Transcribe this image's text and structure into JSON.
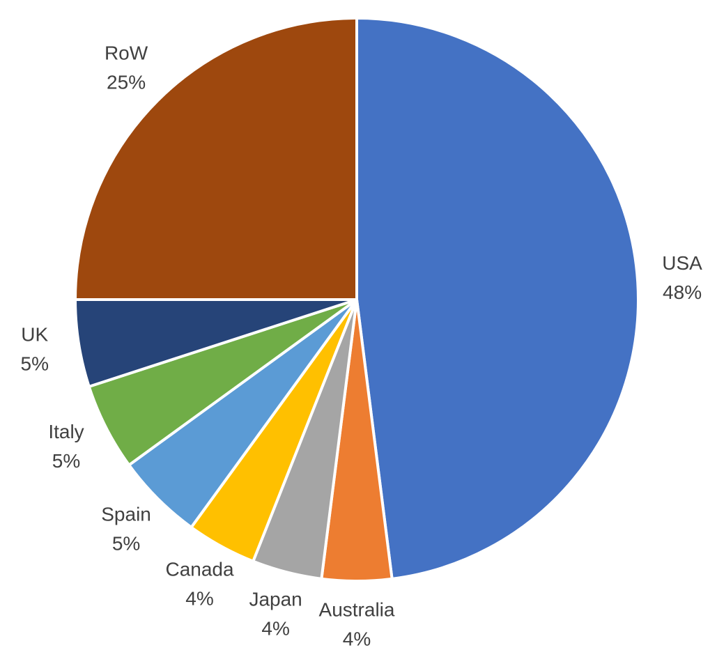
{
  "chart_data": {
    "type": "pie",
    "categories": [
      "USA",
      "Australia",
      "Japan",
      "Canada",
      "Spain",
      "Italy",
      "UK",
      "RoW"
    ],
    "values": [
      48,
      4,
      4,
      4,
      5,
      5,
      5,
      25
    ],
    "value_labels": [
      "48%",
      "4%",
      "4%",
      "4%",
      "5%",
      "5%",
      "5%",
      "25%"
    ],
    "colors": [
      "#4472c4",
      "#ed7d31",
      "#a5a5a5",
      "#ffc000",
      "#5b9bd5",
      "#70ad47",
      "#264478",
      "#9e480e"
    ]
  }
}
